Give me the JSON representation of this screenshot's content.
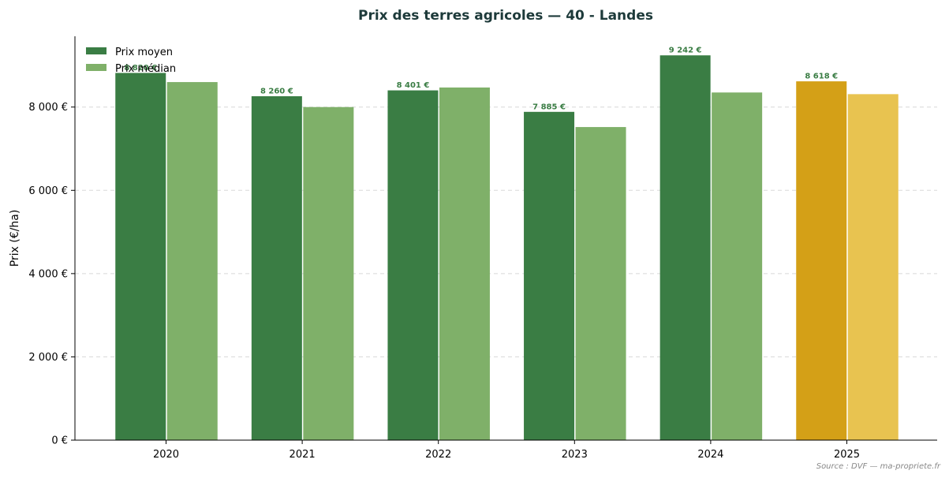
{
  "chart_data": {
    "type": "bar",
    "title": "Prix des terres agricoles — 40 - Landes",
    "ylabel": "Prix (€/ha)",
    "xlabel": "",
    "categories": [
      "2020",
      "2021",
      "2022",
      "2023",
      "2024",
      "2025"
    ],
    "series": [
      {
        "name": "Prix moyen",
        "values": [
          8820,
          8260,
          8401,
          7885,
          9242,
          8618
        ],
        "data_labels": [
          "8 820 €",
          "8 260 €",
          "8 401 €",
          "7 885 €",
          "9 242 €",
          "8 618 €"
        ],
        "color": "#3a7d44",
        "highlight_color": "#d4a017"
      },
      {
        "name": "Prix médian",
        "values": [
          8600,
          8000,
          8470,
          7520,
          8350,
          8310
        ],
        "color": "#7fb069",
        "highlight_color": "#e8c350"
      }
    ],
    "highlight_category": "2025",
    "ylim": [
      0,
      9700
    ],
    "yticks": [
      0,
      2000,
      4000,
      6000,
      8000
    ],
    "ytick_labels": [
      "0 €",
      "2 000 €",
      "4 000 €",
      "6 000 €",
      "8 000 €"
    ],
    "grid": "horizontal dashed",
    "legend_position": "top-left",
    "label_color": "#3a7d44"
  },
  "source": "Source : DVF — ma-propriete.fr"
}
